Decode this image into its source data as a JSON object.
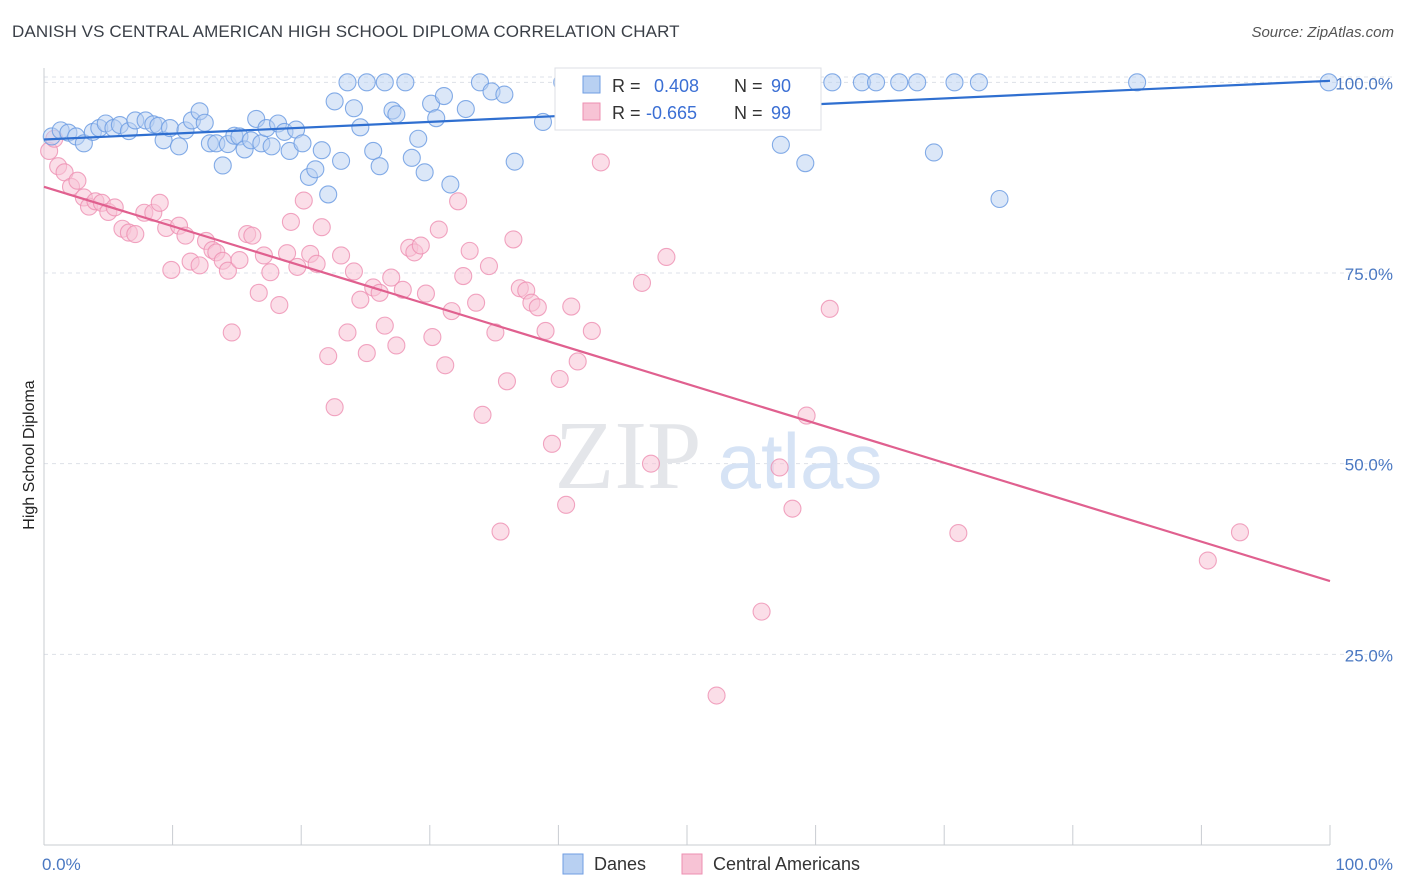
{
  "title": "DANISH VS CENTRAL AMERICAN HIGH SCHOOL DIPLOMA CORRELATION CHART",
  "source": "Source: ZipAtlas.com",
  "watermark": {
    "zip": "ZIP",
    "atlas": "atlas"
  },
  "colors": {
    "danes": "#6f9ee3",
    "danes_fill": "#b8d0f2",
    "danes_line": "#2f6fd0",
    "central": "#ee8fb1",
    "central_fill": "#f7c3d5",
    "central_line": "#e0608f",
    "tick_text": "#4a78c2",
    "grid": "#dde1e8"
  },
  "stats": {
    "r_label": "R =",
    "n_label": "N =",
    "danes": {
      "r": "0.408",
      "n": "90"
    },
    "central": {
      "r": "-0.665",
      "n": "99"
    }
  },
  "legend": {
    "danes": "Danes",
    "central": "Central Americans"
  },
  "chart_data": {
    "type": "scatter",
    "title": "DANISH VS CENTRAL AMERICAN HIGH SCHOOL DIPLOMA CORRELATION CHART",
    "xlabel": "",
    "ylabel": "High School Diploma",
    "xlim": [
      0,
      100
    ],
    "ylim": [
      0,
      104.5
    ],
    "x_tick_labels": [
      "0.0%",
      "100.0%"
    ],
    "y_ticks": [
      25,
      50,
      75,
      100
    ],
    "y_tick_labels": [
      "25.0%",
      "50.0%",
      "75.0%",
      "100.0%"
    ],
    "grid": true,
    "legend_position": "bottom-center",
    "series": [
      {
        "name": "Danes",
        "r": 0.408,
        "n": 90,
        "trend": {
          "x": [
            0,
            100
          ],
          "y": [
            92.5,
            100.2
          ]
        },
        "points": [
          [
            0.6,
            92.9
          ],
          [
            1.3,
            93.7
          ],
          [
            1.9,
            93.4
          ],
          [
            2.5,
            92.9
          ],
          [
            3.1,
            92.0
          ],
          [
            3.8,
            93.5
          ],
          [
            4.3,
            94.0
          ],
          [
            4.8,
            94.6
          ],
          [
            5.4,
            94.0
          ],
          [
            5.9,
            94.4
          ],
          [
            6.6,
            93.6
          ],
          [
            7.1,
            95.0
          ],
          [
            7.9,
            95.0
          ],
          [
            8.5,
            94.5
          ],
          [
            8.9,
            94.3
          ],
          [
            9.3,
            92.4
          ],
          [
            9.8,
            94.0
          ],
          [
            10.5,
            91.6
          ],
          [
            11.0,
            93.7
          ],
          [
            11.5,
            95.0
          ],
          [
            12.1,
            96.2
          ],
          [
            12.5,
            94.7
          ],
          [
            12.9,
            92.0
          ],
          [
            13.4,
            92.0
          ],
          [
            13.9,
            89.1
          ],
          [
            14.3,
            91.9
          ],
          [
            14.8,
            93.0
          ],
          [
            15.2,
            92.9
          ],
          [
            15.6,
            91.2
          ],
          [
            16.1,
            92.4
          ],
          [
            16.5,
            95.2
          ],
          [
            16.9,
            92.0
          ],
          [
            17.3,
            94.0
          ],
          [
            17.7,
            91.6
          ],
          [
            18.2,
            94.6
          ],
          [
            18.7,
            93.5
          ],
          [
            19.1,
            91.0
          ],
          [
            19.6,
            93.8
          ],
          [
            20.1,
            92.0
          ],
          [
            20.6,
            87.6
          ],
          [
            21.1,
            88.6
          ],
          [
            21.6,
            91.1
          ],
          [
            22.1,
            85.3
          ],
          [
            22.6,
            97.5
          ],
          [
            23.1,
            89.7
          ],
          [
            23.6,
            100.0
          ],
          [
            24.1,
            96.6
          ],
          [
            24.6,
            94.1
          ],
          [
            25.1,
            100.0
          ],
          [
            25.6,
            91.0
          ],
          [
            26.1,
            89.0
          ],
          [
            26.5,
            100.0
          ],
          [
            27.1,
            96.3
          ],
          [
            27.4,
            95.8
          ],
          [
            28.1,
            100.0
          ],
          [
            28.6,
            90.1
          ],
          [
            29.1,
            92.6
          ],
          [
            29.6,
            88.2
          ],
          [
            30.1,
            97.2
          ],
          [
            30.5,
            95.3
          ],
          [
            31.1,
            98.2
          ],
          [
            31.6,
            86.6
          ],
          [
            32.8,
            96.5
          ],
          [
            33.9,
            100.0
          ],
          [
            34.8,
            98.8
          ],
          [
            35.8,
            98.4
          ],
          [
            36.6,
            89.6
          ],
          [
            38.8,
            94.8
          ],
          [
            40.3,
            100.0
          ],
          [
            42.4,
            100.0
          ],
          [
            46.1,
            100.0
          ],
          [
            47.8,
            100.0
          ],
          [
            49.6,
            100.0
          ],
          [
            51.6,
            100.0
          ],
          [
            53.4,
            100.0
          ],
          [
            55.7,
            100.0
          ],
          [
            56.7,
            100.0
          ],
          [
            57.3,
            91.8
          ],
          [
            59.2,
            89.4
          ],
          [
            61.3,
            100.0
          ],
          [
            63.6,
            100.0
          ],
          [
            64.7,
            100.0
          ],
          [
            66.5,
            100.0
          ],
          [
            67.9,
            100.0
          ],
          [
            69.2,
            90.8
          ],
          [
            70.8,
            100.0
          ],
          [
            72.7,
            100.0
          ],
          [
            74.3,
            84.7
          ],
          [
            85.0,
            100.0
          ],
          [
            99.9,
            100.0
          ]
        ]
      },
      {
        "name": "Central Americans",
        "r": -0.665,
        "n": 99,
        "trend": {
          "x": [
            0,
            100
          ],
          "y": [
            86.3,
            34.6
          ]
        },
        "points": [
          [
            0.4,
            91.0
          ],
          [
            0.8,
            92.6
          ],
          [
            1.1,
            89.0
          ],
          [
            1.6,
            88.2
          ],
          [
            2.1,
            86.3
          ],
          [
            2.6,
            87.1
          ],
          [
            3.1,
            84.9
          ],
          [
            3.5,
            83.7
          ],
          [
            4.0,
            84.4
          ],
          [
            4.5,
            84.2
          ],
          [
            5.0,
            83.0
          ],
          [
            5.5,
            83.6
          ],
          [
            6.1,
            80.8
          ],
          [
            6.6,
            80.3
          ],
          [
            7.1,
            80.1
          ],
          [
            7.8,
            82.9
          ],
          [
            8.5,
            82.9
          ],
          [
            9.0,
            84.2
          ],
          [
            9.5,
            80.9
          ],
          [
            9.9,
            75.4
          ],
          [
            10.5,
            81.2
          ],
          [
            11.0,
            79.9
          ],
          [
            11.4,
            76.5
          ],
          [
            12.1,
            76.0
          ],
          [
            12.6,
            79.2
          ],
          [
            13.1,
            78.0
          ],
          [
            13.4,
            77.7
          ],
          [
            13.9,
            76.6
          ],
          [
            14.3,
            75.3
          ],
          [
            14.6,
            67.2
          ],
          [
            15.2,
            76.7
          ],
          [
            15.8,
            80.1
          ],
          [
            16.2,
            79.9
          ],
          [
            16.7,
            72.4
          ],
          [
            17.1,
            77.3
          ],
          [
            17.6,
            75.1
          ],
          [
            18.3,
            70.8
          ],
          [
            18.9,
            77.6
          ],
          [
            19.2,
            81.7
          ],
          [
            19.7,
            75.8
          ],
          [
            20.2,
            84.5
          ],
          [
            20.7,
            77.5
          ],
          [
            21.2,
            76.2
          ],
          [
            21.6,
            81.0
          ],
          [
            22.1,
            64.1
          ],
          [
            22.6,
            57.4
          ],
          [
            23.1,
            77.3
          ],
          [
            23.6,
            67.2
          ],
          [
            24.1,
            75.2
          ],
          [
            24.6,
            71.5
          ],
          [
            25.1,
            64.5
          ],
          [
            25.6,
            73.1
          ],
          [
            26.1,
            72.4
          ],
          [
            26.5,
            68.1
          ],
          [
            27.0,
            74.4
          ],
          [
            27.4,
            65.5
          ],
          [
            27.9,
            72.8
          ],
          [
            28.4,
            78.3
          ],
          [
            28.8,
            77.7
          ],
          [
            29.3,
            78.6
          ],
          [
            29.7,
            72.3
          ],
          [
            30.2,
            66.6
          ],
          [
            30.7,
            80.7
          ],
          [
            31.2,
            62.9
          ],
          [
            31.7,
            70.0
          ],
          [
            32.2,
            84.4
          ],
          [
            32.6,
            74.6
          ],
          [
            33.1,
            77.9
          ],
          [
            33.6,
            71.1
          ],
          [
            34.1,
            56.4
          ],
          [
            34.6,
            75.9
          ],
          [
            35.1,
            67.2
          ],
          [
            35.5,
            41.1
          ],
          [
            36.0,
            60.8
          ],
          [
            36.5,
            79.4
          ],
          [
            37.0,
            73.0
          ],
          [
            37.5,
            72.7
          ],
          [
            37.9,
            71.1
          ],
          [
            38.4,
            70.5
          ],
          [
            39.0,
            67.4
          ],
          [
            39.5,
            52.6
          ],
          [
            40.1,
            61.1
          ],
          [
            40.6,
            44.6
          ],
          [
            41.0,
            70.6
          ],
          [
            41.5,
            63.4
          ],
          [
            42.6,
            67.4
          ],
          [
            43.3,
            89.5
          ],
          [
            46.5,
            73.7
          ],
          [
            47.2,
            50.0
          ],
          [
            48.4,
            77.1
          ],
          [
            52.3,
            19.6
          ],
          [
            55.8,
            30.6
          ],
          [
            57.2,
            49.5
          ],
          [
            58.2,
            44.1
          ],
          [
            59.3,
            56.3
          ],
          [
            61.1,
            70.3
          ],
          [
            71.1,
            40.9
          ],
          [
            90.5,
            37.3
          ],
          [
            93.0,
            41.0
          ]
        ]
      }
    ]
  }
}
